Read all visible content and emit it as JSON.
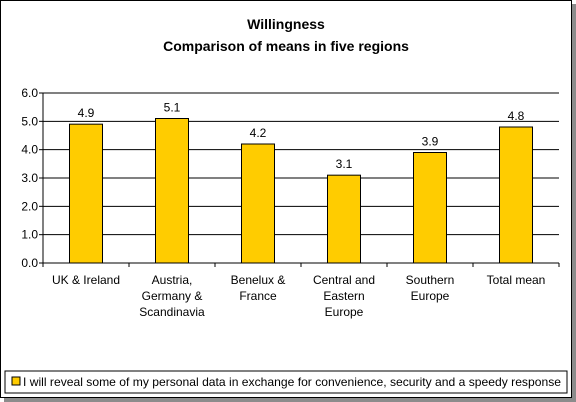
{
  "chart_data": {
    "type": "bar",
    "title": "Willingness",
    "subtitle": "Comparison of means in five regions",
    "categories": [
      [
        "UK & Ireland"
      ],
      [
        "Austria,",
        "Germany &",
        "Scandinavia"
      ],
      [
        "Benelux &",
        "France"
      ],
      [
        "Central and",
        "Eastern",
        "Europe"
      ],
      [
        "Southern",
        "Europe"
      ],
      [
        "Total mean"
      ]
    ],
    "series": [
      {
        "name": "I will reveal some of my personal data in exchange for convenience, security and a speedy response",
        "values": [
          4.9,
          5.1,
          4.2,
          3.1,
          3.9,
          4.8
        ],
        "data_labels": [
          "4.9",
          "5.1",
          "4.2",
          "3.1",
          "3.9",
          "4.8"
        ]
      }
    ],
    "ylim": [
      0,
      6
    ],
    "yticks": [
      "0.0",
      "1.0",
      "2.0",
      "3.0",
      "4.0",
      "5.0",
      "6.0"
    ],
    "ytick_values": [
      0,
      1,
      2,
      3,
      4,
      5,
      6
    ],
    "grid": true,
    "legend_position": "bottom",
    "colors": {
      "bar": "#ffcc00",
      "bar_border": "#000000",
      "grid": "#000000",
      "axis": "#000000"
    }
  }
}
